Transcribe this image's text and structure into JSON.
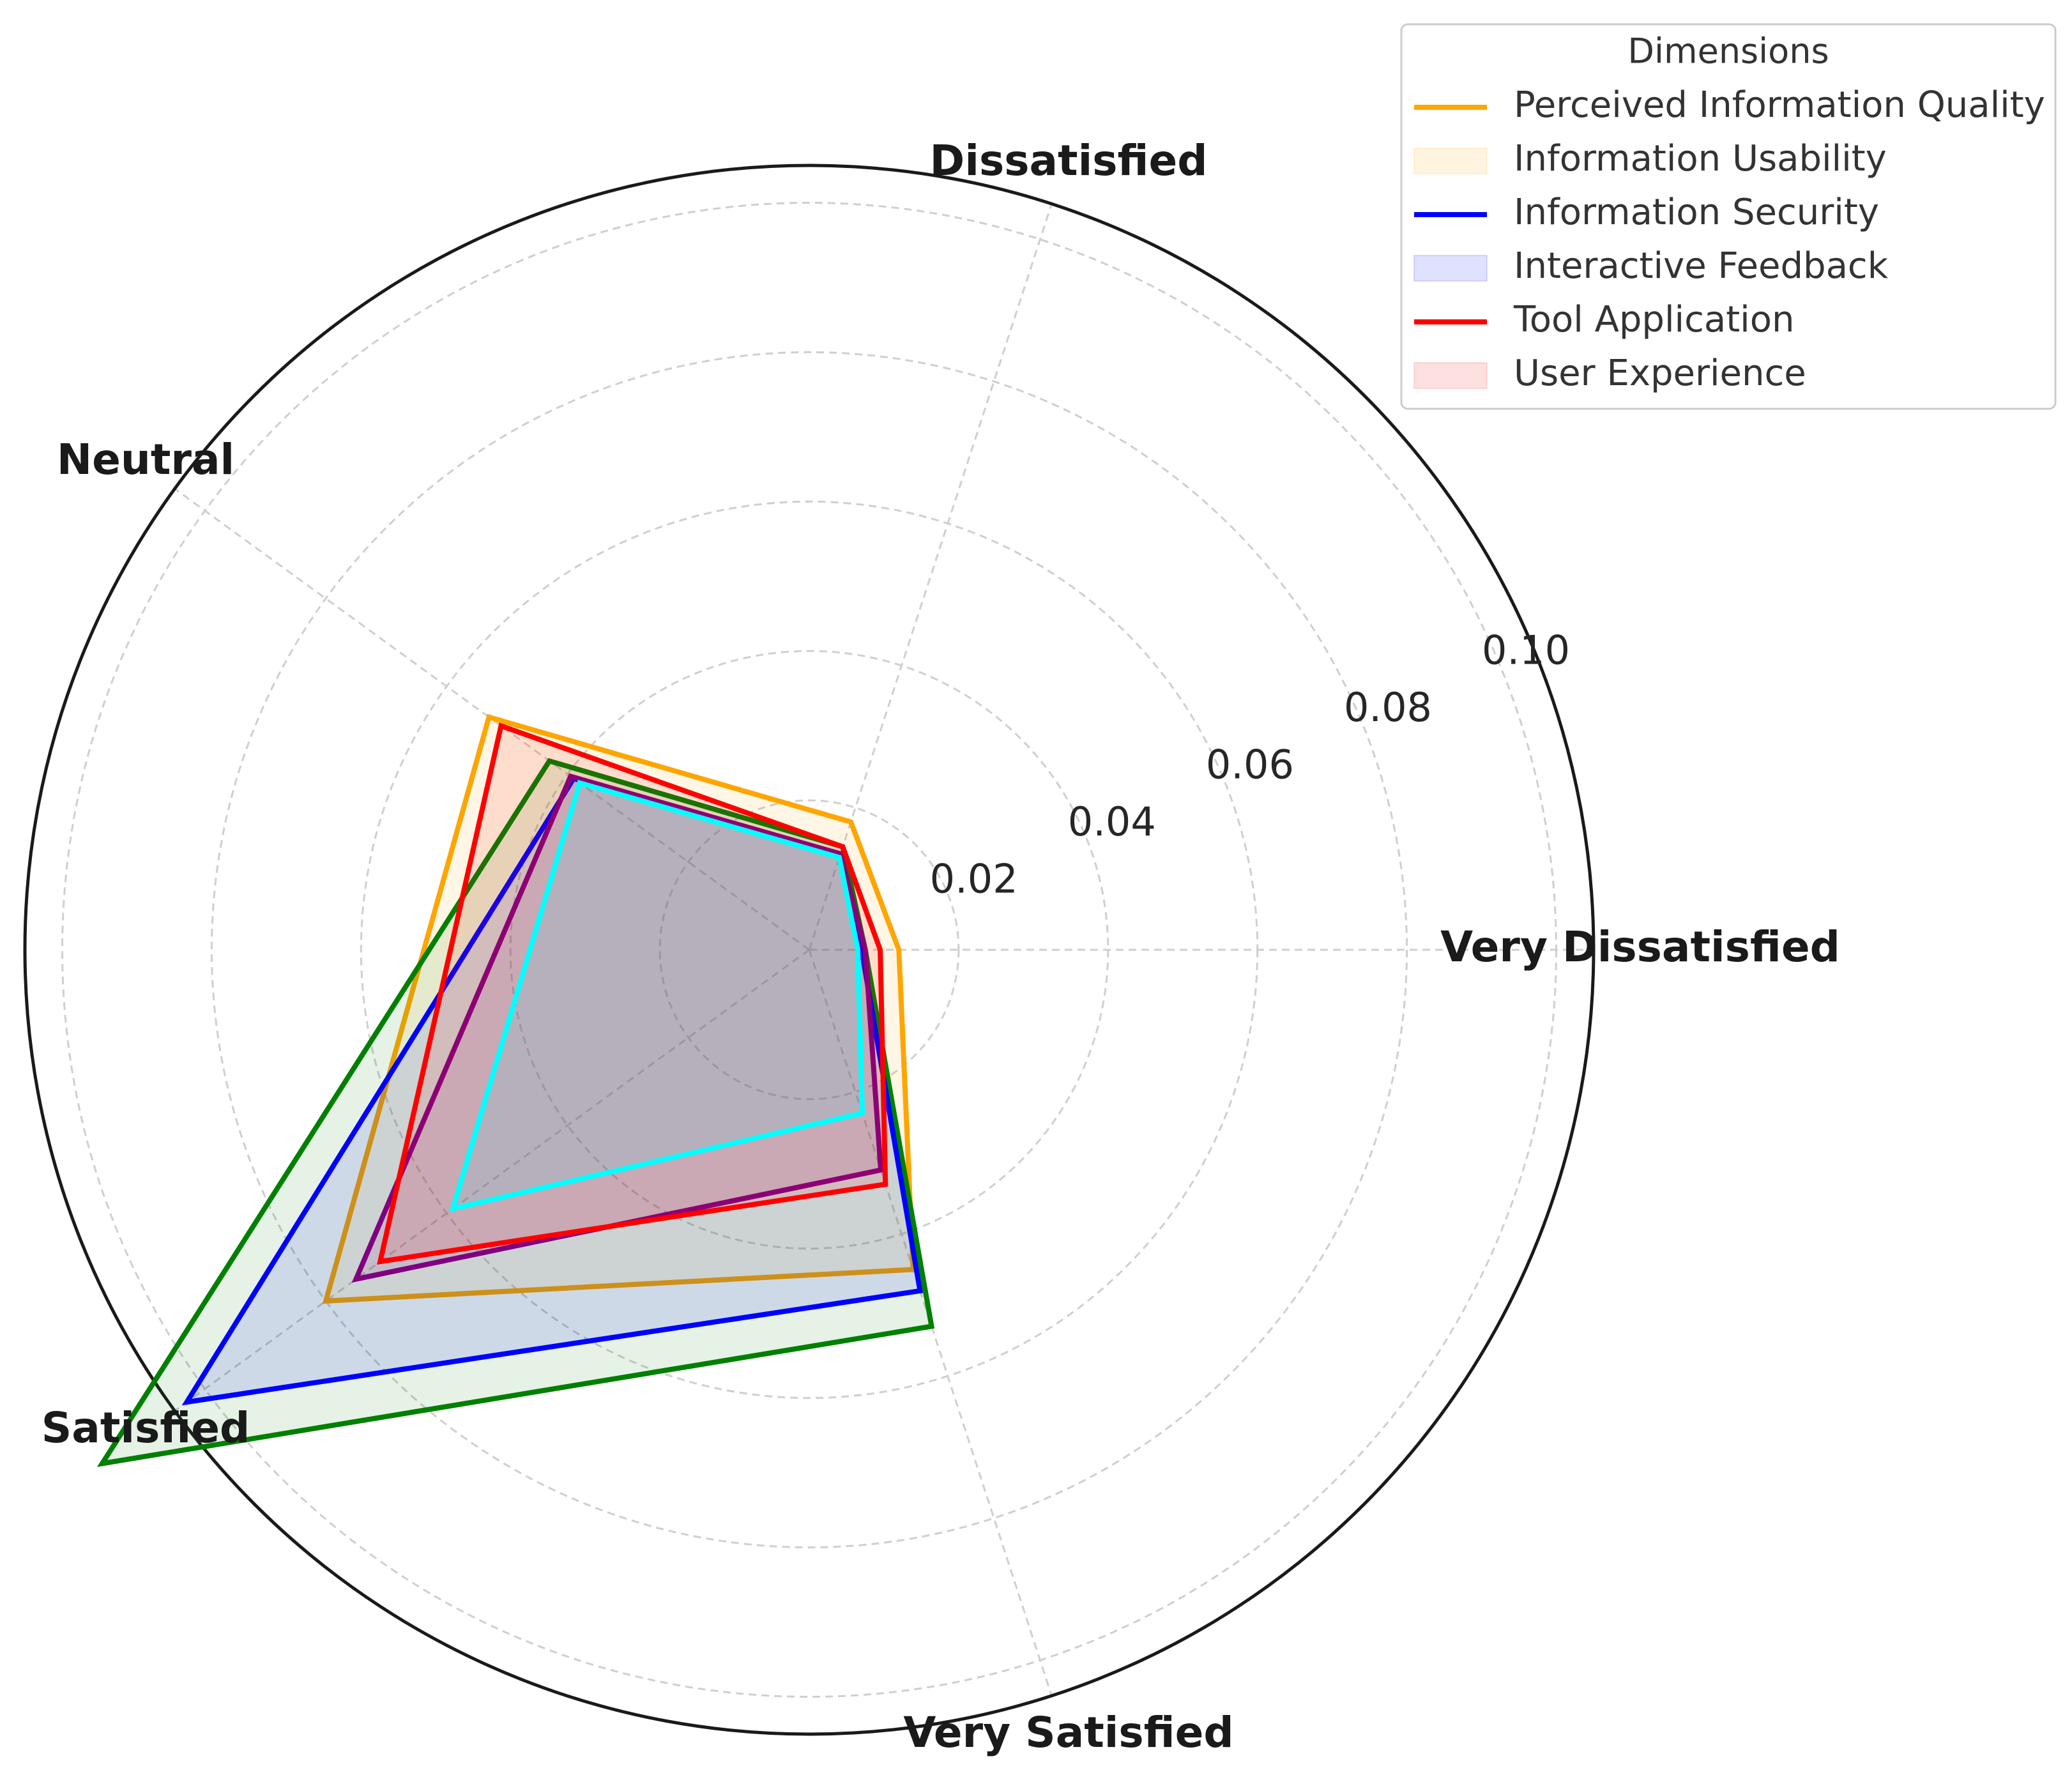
{
  "chart_data": {
    "type": "radar",
    "categories": [
      "Very Dissatisfied",
      "Dissatisfied",
      "Neutral",
      "Satisfied",
      "Very Satisfied"
    ],
    "rlim": [
      0,
      0.105
    ],
    "rticks": [
      0.02,
      0.04,
      0.06,
      0.08,
      0.1
    ],
    "rtick_labels": [
      "0.02",
      "0.04",
      "0.06",
      "0.08",
      "0.10"
    ],
    "grid": true,
    "legend": {
      "title": "Dimensions",
      "position": "top-right",
      "entries": [
        {
          "label": "Perceived Information Quality",
          "kind": "line",
          "color": "#FFA500"
        },
        {
          "label": "Information Usability",
          "kind": "patch",
          "color": "#FFA500"
        },
        {
          "label": "Information Security",
          "kind": "line",
          "color": "#0000FF"
        },
        {
          "label": "Interactive Feedback",
          "kind": "patch",
          "color": "#0000FF"
        },
        {
          "label": "Tool Application",
          "kind": "line",
          "color": "#FF0000"
        },
        {
          "label": "User Experience",
          "kind": "patch",
          "color": "#FF0000"
        }
      ]
    },
    "series": [
      {
        "name": "orange",
        "color": "#FFA500",
        "values": [
          0.012,
          0.018,
          0.053,
          0.08,
          0.045
        ]
      },
      {
        "name": "green",
        "color": "#008000",
        "values": [
          0.0075,
          0.0145,
          0.043,
          0.117,
          0.053
        ]
      },
      {
        "name": "blue",
        "color": "#0000FF",
        "values": [
          0.007,
          0.0135,
          0.039,
          0.103,
          0.048
        ]
      },
      {
        "name": "purple",
        "color": "#800080",
        "values": [
          0.0075,
          0.0135,
          0.0395,
          0.075,
          0.031
        ]
      },
      {
        "name": "red",
        "color": "#FF0000",
        "values": [
          0.0095,
          0.0145,
          0.051,
          0.071,
          0.033
        ]
      },
      {
        "name": "cyan",
        "color": "#00FFFF",
        "values": [
          0.0065,
          0.013,
          0.038,
          0.059,
          0.023
        ]
      }
    ]
  }
}
